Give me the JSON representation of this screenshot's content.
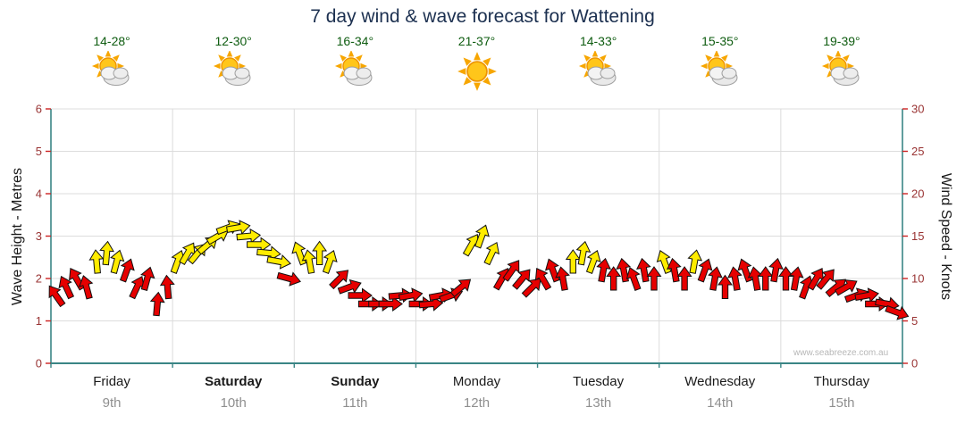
{
  "header": {
    "title": "7 day wind & wave forecast for Wattening"
  },
  "watermark": "www.seabreeze.com.au",
  "left_axis": {
    "label": "Wave Height - Metres",
    "ticks": [
      "0",
      "1",
      "2",
      "3",
      "4",
      "5",
      "6"
    ],
    "range": [
      0,
      6
    ]
  },
  "right_axis": {
    "label": "Wind Speed - Knots",
    "ticks": [
      "0",
      "5",
      "10",
      "15",
      "20",
      "25",
      "30"
    ],
    "range": [
      0,
      30
    ]
  },
  "colors": {
    "arrow_red": "#e60000",
    "arrow_yellow": "#ffec00",
    "arrow_outline": "#111111",
    "axis": "#3a8585",
    "tick": "#cc2222",
    "grid": "#dcdcdc",
    "axis_number": "#993333"
  },
  "chart_data": {
    "type": "scatter",
    "title": "7 day wind & wave forecast for Wattening",
    "x_categories": [
      "Friday 9th",
      "Saturday 10th",
      "Sunday 11th",
      "Monday 12th",
      "Tuesday 13th",
      "Wednesday 14th",
      "Thursday 15th"
    ],
    "left_axis_range_metres": [
      0,
      6
    ],
    "right_axis_range_knots": [
      0,
      30
    ],
    "wind_unit": "knots",
    "arrow_color_rule": {
      "red": "10 knots and below",
      "yellow": "12 knots and above"
    },
    "days": [
      {
        "name": "Friday",
        "date": "9th",
        "temp": "14-28°",
        "icon": "sun-cloud",
        "weekend": false,
        "wind": [
          [
            8,
            -35
          ],
          [
            9,
            -25
          ],
          [
            10,
            -30
          ],
          [
            9,
            -15
          ],
          [
            12,
            -5
          ],
          [
            13,
            5
          ],
          [
            12,
            15
          ],
          [
            11,
            20
          ],
          [
            9,
            25
          ],
          [
            10,
            15
          ],
          [
            7,
            5
          ],
          [
            9,
            -5
          ]
        ]
      },
      {
        "name": "Saturday",
        "date": "10th",
        "temp": "12-30°",
        "icon": "sun-cloud",
        "weekend": true,
        "wind": [
          [
            12,
            20
          ],
          [
            13,
            30
          ],
          [
            13,
            40
          ],
          [
            14,
            50
          ],
          [
            15,
            60
          ],
          [
            16,
            70
          ],
          [
            16,
            80
          ],
          [
            15,
            85
          ],
          [
            14,
            90
          ],
          [
            13,
            95
          ],
          [
            12,
            100
          ],
          [
            10,
            105
          ]
        ]
      },
      {
        "name": "Sunday",
        "date": "11th",
        "temp": "16-34°",
        "icon": "sun-cloud",
        "weekend": true,
        "wind": [
          [
            13,
            -20
          ],
          [
            12,
            -10
          ],
          [
            13,
            0
          ],
          [
            12,
            20
          ],
          [
            10,
            45
          ],
          [
            9,
            70
          ],
          [
            8,
            90
          ],
          [
            7,
            90
          ],
          [
            7,
            90
          ],
          [
            7,
            90
          ],
          [
            8,
            85
          ],
          [
            8,
            80
          ]
        ]
      },
      {
        "name": "Monday",
        "date": "12th",
        "temp": "21-37°",
        "icon": "sun",
        "weekend": false,
        "wind": [
          [
            7,
            90
          ],
          [
            7,
            85
          ],
          [
            8,
            80
          ],
          [
            8,
            70
          ],
          [
            9,
            50
          ],
          [
            14,
            30
          ],
          [
            15,
            20
          ],
          [
            13,
            25
          ],
          [
            10,
            30
          ],
          [
            11,
            35
          ],
          [
            10,
            40
          ],
          [
            9,
            45
          ]
        ]
      },
      {
        "name": "Tuesday",
        "date": "13th",
        "temp": "14-33°",
        "icon": "sun-cloud",
        "weekend": false,
        "wind": [
          [
            10,
            -30
          ],
          [
            11,
            -20
          ],
          [
            10,
            -10
          ],
          [
            12,
            0
          ],
          [
            13,
            10
          ],
          [
            12,
            20
          ],
          [
            11,
            10
          ],
          [
            10,
            0
          ],
          [
            11,
            -10
          ],
          [
            10,
            -20
          ],
          [
            11,
            -10
          ],
          [
            10,
            0
          ]
        ]
      },
      {
        "name": "Wednesday",
        "date": "14th",
        "temp": "15-35°",
        "icon": "sun-cloud",
        "weekend": false,
        "wind": [
          [
            12,
            -20
          ],
          [
            11,
            -10
          ],
          [
            10,
            0
          ],
          [
            12,
            10
          ],
          [
            11,
            20
          ],
          [
            10,
            10
          ],
          [
            9,
            0
          ],
          [
            10,
            -10
          ],
          [
            11,
            -20
          ],
          [
            10,
            -10
          ],
          [
            10,
            0
          ],
          [
            11,
            10
          ]
        ]
      },
      {
        "name": "Thursday",
        "date": "15th",
        "temp": "19-39°",
        "icon": "sun-cloud",
        "weekend": false,
        "wind": [
          [
            10,
            0
          ],
          [
            10,
            10
          ],
          [
            9,
            20
          ],
          [
            10,
            30
          ],
          [
            10,
            40
          ],
          [
            9,
            50
          ],
          [
            9,
            60
          ],
          [
            8,
            70
          ],
          [
            8,
            80
          ],
          [
            7,
            90
          ],
          [
            7,
            100
          ],
          [
            6,
            110
          ]
        ]
      }
    ]
  }
}
